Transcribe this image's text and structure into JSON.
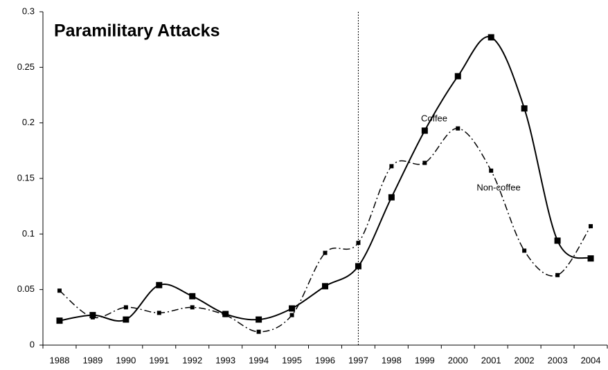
{
  "chart_data": {
    "type": "line",
    "title": "Paramilitary Attacks",
    "categories": [
      "1988",
      "1989",
      "1990",
      "1991",
      "1992",
      "1993",
      "1994",
      "1995",
      "1996",
      "1997",
      "1998",
      "1999",
      "2000",
      "2001",
      "2002",
      "2003",
      "2004"
    ],
    "series": [
      {
        "name": "Coffee",
        "color": "#000000",
        "style": "solid",
        "values": [
          0.022,
          0.027,
          0.023,
          0.054,
          0.044,
          0.028,
          0.023,
          0.033,
          0.053,
          0.071,
          0.133,
          0.193,
          0.242,
          0.277,
          0.213,
          0.094,
          0.078
        ]
      },
      {
        "name": "Non-coffee",
        "color": "#000000",
        "style": "dashed",
        "values": [
          0.049,
          0.025,
          0.034,
          0.029,
          0.034,
          0.027,
          0.012,
          0.027,
          0.083,
          0.092,
          0.161,
          0.164,
          0.195,
          0.157,
          0.085,
          0.063,
          0.107
        ]
      }
    ],
    "ylim": [
      0,
      0.3
    ],
    "yticks": [
      0,
      0.05,
      0.1,
      0.15,
      0.2,
      0.25,
      0.3
    ],
    "grid": false,
    "reference_line": "1997"
  }
}
